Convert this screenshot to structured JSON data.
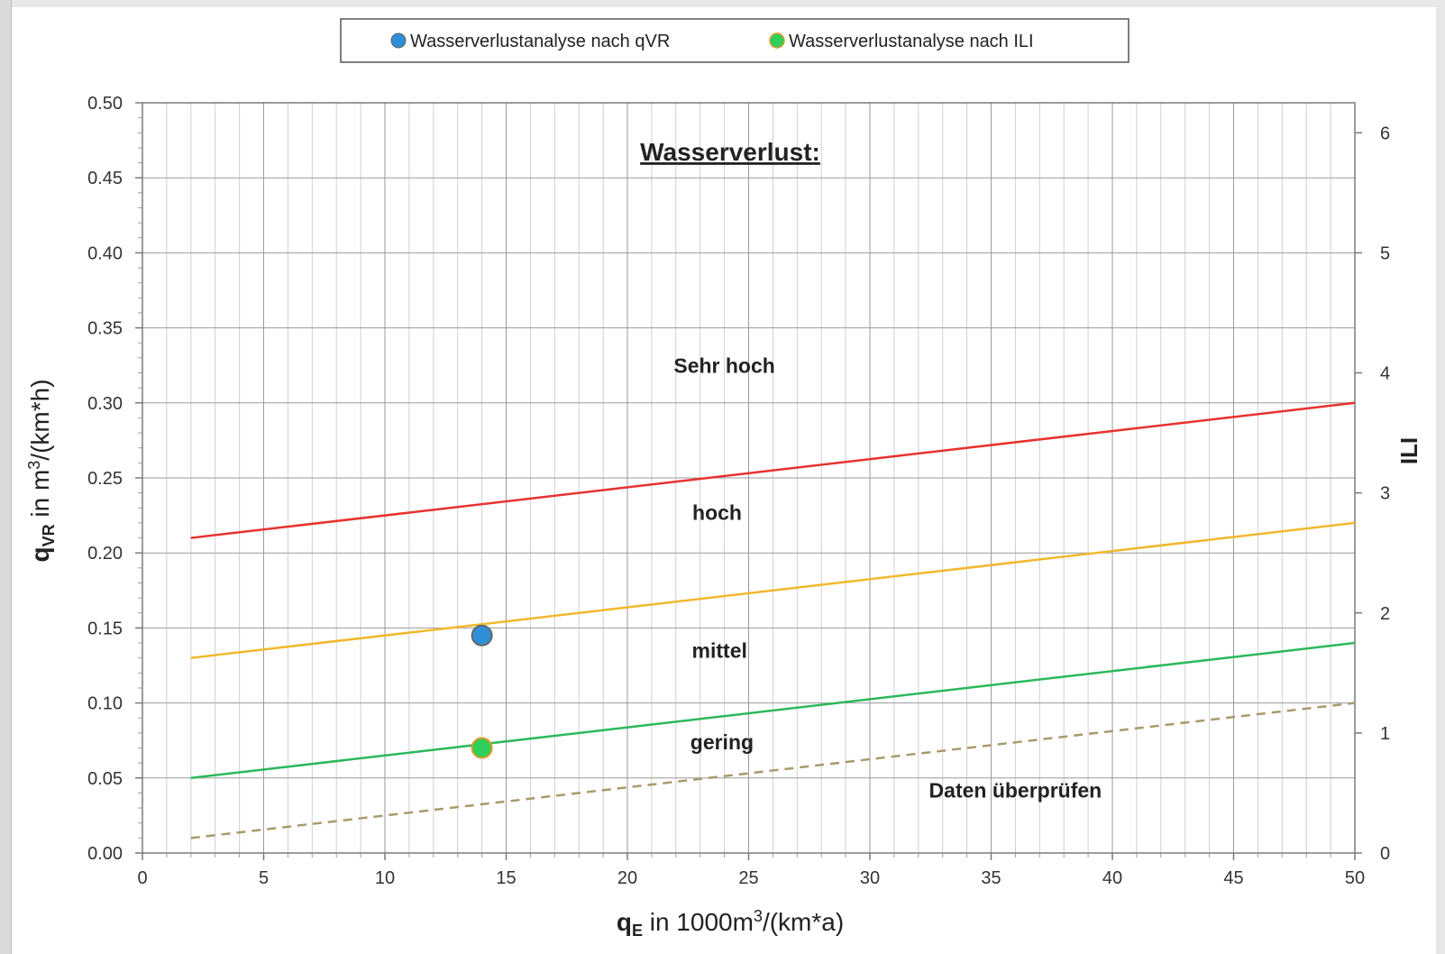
{
  "chart_data": {
    "type": "line",
    "title": "Wasserverlust:",
    "xlabel": {
      "main": "q",
      "sub": "E",
      "rest_pre": " in 1000m",
      "sup": "3",
      "rest_post": "/(km*a)"
    },
    "ylabel": {
      "main": "q",
      "sub": "VR",
      "rest_pre": " in m",
      "sup": "3",
      "rest_post": "/(km*h)"
    },
    "y2label": "ILI",
    "xlim": [
      0,
      50
    ],
    "ylim": [
      0,
      0.5
    ],
    "y2lim": [
      0,
      6.25
    ],
    "x_ticks": [
      "0",
      "5",
      "10",
      "15",
      "20",
      "25",
      "30",
      "35",
      "40",
      "45",
      "50"
    ],
    "y_ticks": [
      "0.00",
      "0.05",
      "0.10",
      "0.15",
      "0.20",
      "0.25",
      "0.30",
      "0.35",
      "0.40",
      "0.45",
      "0.50"
    ],
    "y2_ticks": [
      "0",
      "1",
      "2",
      "3",
      "4",
      "5",
      "6"
    ],
    "grid": true,
    "legend_position": "top-center",
    "legend": [
      {
        "label": "Wasserverlustanalyse nach qVR",
        "color": "#2e8fd8"
      },
      {
        "label": "Wasserverlustanalyse nach ILI",
        "color": "#2ecf5a"
      }
    ],
    "threshold_lines": [
      {
        "x": [
          2,
          50
        ],
        "y": [
          0.21,
          0.3
        ],
        "color": "#e8322e",
        "style": "solid"
      },
      {
        "x": [
          2,
          50
        ],
        "y": [
          0.13,
          0.22
        ],
        "color": "#f2b82c",
        "style": "solid"
      },
      {
        "x": [
          2,
          50
        ],
        "y": [
          0.05,
          0.14
        ],
        "color": "#2cb85a",
        "style": "solid"
      },
      {
        "x": [
          2,
          50
        ],
        "y": [
          0.01,
          0.1
        ],
        "color": "#a89a6a",
        "style": "dashed"
      }
    ],
    "region_labels": [
      {
        "text": "Sehr hoch",
        "x": 24,
        "y": 0.32
      },
      {
        "text": "hoch",
        "x": 23.7,
        "y": 0.222
      },
      {
        "text": "mittel",
        "x": 23.8,
        "y": 0.13
      },
      {
        "text": "gering",
        "x": 23.9,
        "y": 0.069
      },
      {
        "text": "Daten überprüfen",
        "x": 36,
        "y": 0.037
      }
    ],
    "points": [
      {
        "series": "Wasserverlustanalyse nach qVR",
        "x": 14,
        "y": 0.145,
        "color": "#2e8fd8"
      },
      {
        "series": "Wasserverlustanalyse nach ILI",
        "x": 14,
        "y": 0.07,
        "color": "#2ecf5a"
      }
    ]
  }
}
